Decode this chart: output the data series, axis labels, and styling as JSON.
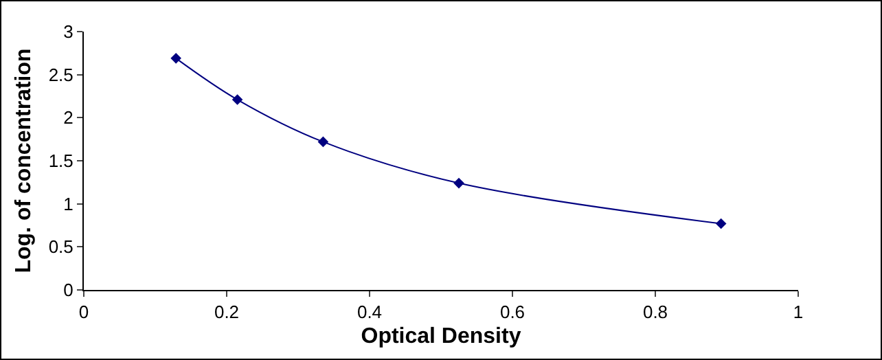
{
  "chart_data": {
    "type": "line",
    "xlabel": "Optical Density",
    "ylabel": "Log. of concentration",
    "x": [
      0.129,
      0.215,
      0.335,
      0.525,
      0.892
    ],
    "series": [
      {
        "color": "#000080",
        "values": [
          2.69,
          2.21,
          1.72,
          1.24,
          0.77
        ]
      }
    ],
    "xlim": [
      0,
      1
    ],
    "xticks": [
      0,
      0.2,
      0.4,
      0.6,
      0.8,
      1
    ],
    "ylim": [
      0,
      3
    ],
    "yticks": [
      0,
      0.5,
      1,
      1.5,
      2,
      2.5,
      3
    ],
    "marker": "diamond",
    "line_style": "solid"
  }
}
